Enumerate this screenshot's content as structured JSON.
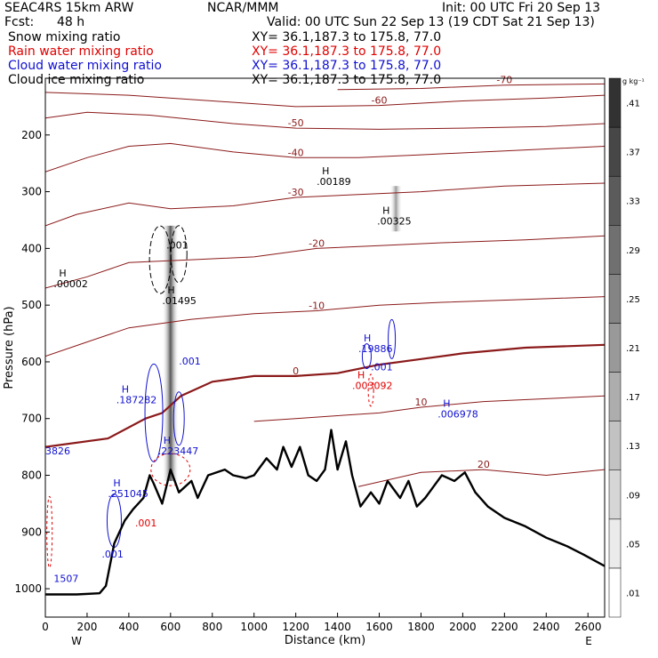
{
  "header": {
    "model": "SEAC4RS 15km ARW",
    "center": "NCAR/MMM",
    "init": "Init: 00 UTC Fri 20 Sep 13",
    "fcst_label": "Fcst:",
    "fcst_value": "48 h",
    "valid": "Valid: 00 UTC Sun 22 Sep 13 (19 CDT Sat 21 Sep 13)"
  },
  "fields": [
    {
      "name": "Snow mixing ratio",
      "xy": "XY=  36.1,187.3 to 175.8, 77.0",
      "color": "#000000"
    },
    {
      "name": "Rain water mixing ratio",
      "xy": "XY=  36.1,187.3 to 175.8, 77.0",
      "color": "#e00000"
    },
    {
      "name": "Cloud water mixing ratio",
      "xy": "XY=  36.1,187.3 to 175.8, 77.0",
      "color": "#1010d0"
    },
    {
      "name": "Cloud ice mixing ratio",
      "xy": "XY=  36.1,187.3 to 175.8, 77.0",
      "color": "#000000"
    }
  ],
  "chart_data": {
    "type": "cross-section",
    "xlabel": "Distance (km)",
    "ylabel": "Pressure (hPa)",
    "xlim": [
      0,
      2680
    ],
    "ylim": [
      1050,
      100
    ],
    "x_ticks": [
      0,
      200,
      400,
      600,
      800,
      1000,
      1200,
      1400,
      1600,
      1800,
      2000,
      2200,
      2400,
      2600
    ],
    "y_ticks": [
      200,
      300,
      400,
      500,
      600,
      700,
      800,
      900,
      1000
    ],
    "x_end_labels": {
      "left": "W",
      "right": "E"
    },
    "colorbar": {
      "unit": "g kg⁻¹",
      "labels": [
        ".01",
        ".05",
        ".09",
        ".13",
        ".17",
        ".21",
        ".25",
        ".29",
        ".33",
        ".37",
        ".41"
      ]
    },
    "terrain": [
      [
        0,
        1010
      ],
      [
        150,
        1010
      ],
      [
        260,
        1008
      ],
      [
        290,
        995
      ],
      [
        330,
        920
      ],
      [
        380,
        880
      ],
      [
        420,
        860
      ],
      [
        470,
        840
      ],
      [
        500,
        800
      ],
      [
        520,
        815
      ],
      [
        560,
        850
      ],
      [
        600,
        790
      ],
      [
        640,
        830
      ],
      [
        700,
        810
      ],
      [
        730,
        840
      ],
      [
        780,
        800
      ],
      [
        860,
        790
      ],
      [
        900,
        800
      ],
      [
        960,
        805
      ],
      [
        1000,
        800
      ],
      [
        1060,
        770
      ],
      [
        1110,
        790
      ],
      [
        1140,
        750
      ],
      [
        1180,
        785
      ],
      [
        1220,
        750
      ],
      [
        1260,
        800
      ],
      [
        1300,
        810
      ],
      [
        1340,
        790
      ],
      [
        1370,
        720
      ],
      [
        1400,
        790
      ],
      [
        1440,
        740
      ],
      [
        1470,
        800
      ],
      [
        1510,
        855
      ],
      [
        1560,
        830
      ],
      [
        1600,
        850
      ],
      [
        1640,
        810
      ],
      [
        1700,
        840
      ],
      [
        1740,
        810
      ],
      [
        1780,
        855
      ],
      [
        1820,
        840
      ],
      [
        1860,
        820
      ],
      [
        1900,
        800
      ],
      [
        1960,
        810
      ],
      [
        2010,
        795
      ],
      [
        2060,
        830
      ],
      [
        2120,
        855
      ],
      [
        2200,
        875
      ],
      [
        2300,
        890
      ],
      [
        2400,
        910
      ],
      [
        2500,
        925
      ],
      [
        2580,
        940
      ],
      [
        2680,
        960
      ]
    ],
    "temperature_contours": [
      {
        "label": "-70",
        "points": [
          [
            1400,
            120
          ],
          [
            1800,
            118
          ],
          [
            2200,
            112
          ],
          [
            2680,
            110
          ]
        ]
      },
      {
        "label": "-60",
        "points": [
          [
            0,
            125
          ],
          [
            400,
            130
          ],
          [
            800,
            140
          ],
          [
            1200,
            150
          ],
          [
            1600,
            148
          ],
          [
            2000,
            140
          ],
          [
            2400,
            135
          ],
          [
            2680,
            130
          ]
        ]
      },
      {
        "label": "-50",
        "points": [
          [
            0,
            170
          ],
          [
            200,
            160
          ],
          [
            500,
            165
          ],
          [
            900,
            180
          ],
          [
            1200,
            188
          ],
          [
            1600,
            190
          ],
          [
            2000,
            188
          ],
          [
            2400,
            185
          ],
          [
            2680,
            180
          ]
        ]
      },
      {
        "label": "-40",
        "points": [
          [
            0,
            265
          ],
          [
            200,
            240
          ],
          [
            400,
            220
          ],
          [
            600,
            215
          ],
          [
            900,
            230
          ],
          [
            1200,
            240
          ],
          [
            1500,
            240
          ],
          [
            1800,
            235
          ],
          [
            2200,
            228
          ],
          [
            2680,
            220
          ]
        ]
      },
      {
        "label": "-30",
        "points": [
          [
            0,
            360
          ],
          [
            150,
            340
          ],
          [
            400,
            320
          ],
          [
            600,
            330
          ],
          [
            900,
            325
          ],
          [
            1200,
            310
          ],
          [
            1500,
            305
          ],
          [
            1800,
            300
          ],
          [
            2200,
            290
          ],
          [
            2680,
            285
          ]
        ]
      },
      {
        "label": "-20",
        "points": [
          [
            0,
            470
          ],
          [
            200,
            450
          ],
          [
            400,
            425
          ],
          [
            700,
            420
          ],
          [
            1000,
            415
          ],
          [
            1300,
            400
          ],
          [
            1600,
            395
          ],
          [
            1900,
            390
          ],
          [
            2300,
            385
          ],
          [
            2680,
            378
          ]
        ]
      },
      {
        "label": "-10",
        "points": [
          [
            0,
            590
          ],
          [
            200,
            565
          ],
          [
            400,
            540
          ],
          [
            700,
            525
          ],
          [
            1000,
            515
          ],
          [
            1300,
            510
          ],
          [
            1600,
            500
          ],
          [
            1900,
            495
          ],
          [
            2300,
            490
          ],
          [
            2680,
            485
          ]
        ]
      },
      {
        "label": "0",
        "points": [
          [
            0,
            750
          ],
          [
            300,
            735
          ],
          [
            480,
            700
          ],
          [
            560,
            690
          ],
          [
            650,
            660
          ],
          [
            800,
            635
          ],
          [
            1000,
            625
          ],
          [
            1200,
            625
          ],
          [
            1400,
            620
          ],
          [
            1600,
            605
          ],
          [
            1800,
            595
          ],
          [
            2000,
            585
          ],
          [
            2300,
            575
          ],
          [
            2680,
            570
          ]
        ]
      },
      {
        "label": "10",
        "points": [
          [
            1000,
            705
          ],
          [
            1200,
            700
          ],
          [
            1400,
            695
          ],
          [
            1600,
            690
          ],
          [
            1800,
            680
          ],
          [
            2100,
            670
          ],
          [
            2400,
            665
          ],
          [
            2680,
            660
          ]
        ]
      },
      {
        "label": "20",
        "points": [
          [
            1500,
            820
          ],
          [
            1800,
            795
          ],
          [
            2100,
            790
          ],
          [
            2400,
            800
          ],
          [
            2680,
            790
          ]
        ]
      }
    ],
    "maxima": [
      {
        "field": "Cloud ice mixing ratio",
        "label": "H",
        "value": ".00002",
        "x": 40,
        "y": 465
      },
      {
        "field": "Cloud ice mixing ratio",
        "label": "H",
        "value": ".01495",
        "x": 560,
        "y": 495
      },
      {
        "field": "Cloud ice mixing ratio",
        "label": "H",
        "value": ".00189",
        "x": 1300,
        "y": 285
      },
      {
        "field": "Snow mixing ratio",
        "label": "H",
        "value": ".00325",
        "x": 1590,
        "y": 355
      },
      {
        "field": "Cloud water mixing ratio",
        "label": "H",
        "value": ".187282",
        "x": 340,
        "y": 670
      },
      {
        "field": "Cloud water mixing ratio",
        "label": "H",
        "value": ".223447",
        "x": 540,
        "y": 760
      },
      {
        "field": "Cloud water mixing ratio",
        "label": "H",
        "value": ".251045",
        "x": 300,
        "y": 835
      },
      {
        "field": "Cloud water mixing ratio",
        "label": "H",
        "value": ".19886",
        "x": 1500,
        "y": 580
      },
      {
        "field": "Cloud water mixing ratio",
        "label": "H",
        "value": ".006978",
        "x": 1880,
        "y": 695
      },
      {
        "field": "Cloud water mixing ratio",
        "value": "3826",
        "x": 0,
        "y": 760
      },
      {
        "field": "Cloud water mixing ratio",
        "value": "1507",
        "x": 40,
        "y": 985
      },
      {
        "field": "Rain water mixing ratio",
        "label": "H",
        "value": ".003092",
        "x": 1470,
        "y": 645
      }
    ],
    "contour_labels": [
      {
        "text": ".001",
        "x": 580,
        "y": 400,
        "color": "#000000"
      },
      {
        "text": ".001",
        "x": 640,
        "y": 605,
        "color": "#1010d0"
      },
      {
        "text": ".001",
        "x": 1560,
        "y": 615,
        "color": "#1010d0"
      },
      {
        "text": ".001",
        "x": 430,
        "y": 890,
        "color": "#e00000"
      },
      {
        "text": ".001",
        "x": 270,
        "y": 945,
        "color": "#1010d0"
      }
    ]
  }
}
